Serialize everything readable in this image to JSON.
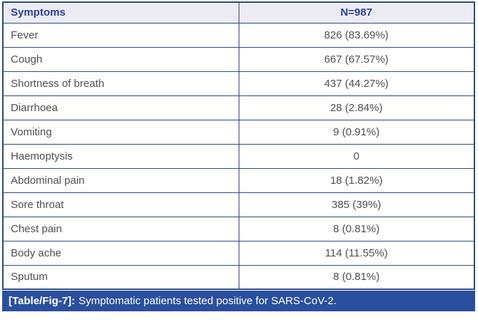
{
  "table": {
    "header": {
      "symptom_label": "Symptoms",
      "n_label": "N=987"
    },
    "rows": [
      {
        "symptom": "Fever",
        "value": "826 (83.69%)"
      },
      {
        "symptom": "Cough",
        "value": "667 (67.57%)"
      },
      {
        "symptom": "Shortness of breath",
        "value": "437 (44.27%)"
      },
      {
        "symptom": "Diarrhoea",
        "value": "28 (2.84%)"
      },
      {
        "symptom": "Vomiting",
        "value": "9 (0.91%)"
      },
      {
        "symptom": "Haemoptysis",
        "value": "0"
      },
      {
        "symptom": "Abdominal pain",
        "value": "18 (1.82%)"
      },
      {
        "symptom": "Sore throat",
        "value": "385 (39%)"
      },
      {
        "symptom": "Chest pain",
        "value": "8 (0.81%)"
      },
      {
        "symptom": "Body ache",
        "value": "114 (11.55%)"
      },
      {
        "symptom": "Sputum",
        "value": "8 (0.81%)"
      }
    ],
    "footer": {
      "label": "[Table/Fig-7]:",
      "caption": "Symptomatic patients tested positive for SARS-CoV-2."
    }
  },
  "colors": {
    "border": "#2e4d79",
    "header_bg": "#ebebf4",
    "header_text": "#2b4198",
    "body_text": "#4f5052",
    "caption_bg": "#2a4f9e",
    "caption_text": "#ffffff"
  },
  "chart_data": {
    "type": "table",
    "title": "[Table/Fig-7]: Symptomatic patients tested positive for SARS-CoV-2.",
    "columns": [
      "Symptoms",
      "N=987"
    ],
    "categories": [
      "Fever",
      "Cough",
      "Shortness of breath",
      "Diarrhoea",
      "Vomiting",
      "Haemoptysis",
      "Abdominal pain",
      "Sore throat",
      "Chest pain",
      "Body ache",
      "Sputum"
    ],
    "values": [
      826,
      667,
      437,
      28,
      9,
      0,
      18,
      385,
      8,
      114,
      8
    ],
    "percentages": [
      83.69,
      67.57,
      44.27,
      2.84,
      0.91,
      0,
      1.82,
      39,
      0.81,
      11.55,
      0.81
    ],
    "n_total": 987
  }
}
